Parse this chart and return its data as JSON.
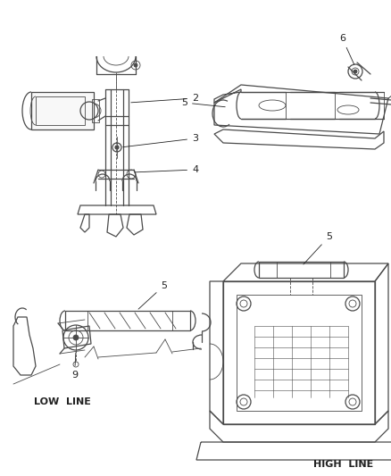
{
  "background_color": "#ffffff",
  "line_color": "#4a4a4a",
  "label_color": "#222222",
  "fig_width": 4.39,
  "fig_height": 5.33,
  "dpi": 100
}
